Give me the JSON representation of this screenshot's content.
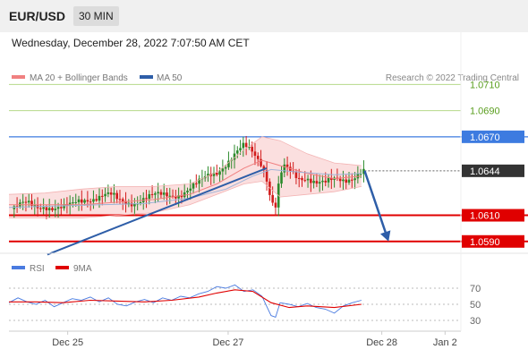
{
  "header": {
    "symbol": "EUR/USD",
    "interval": "30 MIN"
  },
  "datetime": "Wednesday, December 28, 2022 7:07:50 AM CET",
  "legend": {
    "ma20": "MA 20 + Bollinger Bands",
    "ma50": "MA 50",
    "rsi": "RSI",
    "ma9": "9MA",
    "copyright": "Research © 2022 Trading Central"
  },
  "colors": {
    "up": "#2b8a2b",
    "down": "#d21c1c",
    "ma20": "#f08080",
    "bb_fill": "#fbdcdc",
    "ma50": "#2e5ea8",
    "support": "#e00000",
    "resistance": "#b6d98a",
    "pivot": "#3d7be0",
    "current": "#333333",
    "rsi": "#4a7be0",
    "rsi_ma": "#e00000"
  },
  "chart_data": [
    {
      "type": "candlestick",
      "title": "EUR/USD 30 MIN",
      "x_tick_labels": [
        "Dec 25",
        "Dec 27",
        "Dec 28",
        "Jan 2"
      ],
      "ylim": [
        1.0583,
        1.0713
      ],
      "levels": [
        {
          "label": "1.0710",
          "value": 1.071,
          "kind": "resistance"
        },
        {
          "label": "1.0690",
          "value": 1.069,
          "kind": "resistance"
        },
        {
          "label": "1.0670",
          "value": 1.067,
          "kind": "pivot"
        },
        {
          "label": "1.0644",
          "value": 1.0644,
          "kind": "current"
        },
        {
          "label": "1.0610",
          "value": 1.061,
          "kind": "support"
        },
        {
          "label": "1.0590",
          "value": 1.059,
          "kind": "support"
        }
      ],
      "trendline": [
        [
          0.085,
          1.058
        ],
        [
          0.57,
          1.0646
        ]
      ],
      "forecast_arrow": [
        [
          0.787,
          1.0644
        ],
        [
          0.84,
          1.059
        ]
      ],
      "price_path": [
        [
          0.0,
          1.0614
        ],
        [
          0.02,
          1.0617
        ],
        [
          0.04,
          1.0618
        ],
        [
          0.06,
          1.0616
        ],
        [
          0.08,
          1.0618
        ],
        [
          0.1,
          1.0616
        ],
        [
          0.12,
          1.0615
        ],
        [
          0.14,
          1.0617
        ],
        [
          0.15,
          1.062
        ],
        [
          0.17,
          1.0623
        ],
        [
          0.19,
          1.0624
        ],
        [
          0.21,
          1.0625
        ],
        [
          0.23,
          1.0624
        ],
        [
          0.24,
          1.0621
        ],
        [
          0.26,
          1.062
        ],
        [
          0.28,
          1.0621
        ],
        [
          0.3,
          1.0623
        ],
        [
          0.32,
          1.0624
        ],
        [
          0.34,
          1.0625
        ],
        [
          0.36,
          1.0626
        ],
        [
          0.38,
          1.0627
        ],
        [
          0.4,
          1.063
        ],
        [
          0.42,
          1.0634
        ],
        [
          0.44,
          1.064
        ],
        [
          0.46,
          1.0644
        ],
        [
          0.48,
          1.065
        ],
        [
          0.5,
          1.0656
        ],
        [
          0.52,
          1.0662
        ],
        [
          0.54,
          1.0658
        ],
        [
          0.56,
          1.065
        ],
        [
          0.57,
          1.064
        ],
        [
          0.58,
          1.0622
        ],
        [
          0.59,
          1.0617
        ],
        [
          0.6,
          1.064
        ],
        [
          0.61,
          1.0646
        ],
        [
          0.62,
          1.0643
        ],
        [
          0.64,
          1.0638
        ],
        [
          0.66,
          1.064
        ],
        [
          0.68,
          1.0636
        ],
        [
          0.7,
          1.0634
        ],
        [
          0.72,
          1.0636
        ],
        [
          0.74,
          1.0637
        ],
        [
          0.76,
          1.064
        ],
        [
          0.78,
          1.0644
        ]
      ],
      "ma20": [
        [
          0.0,
          1.0618
        ],
        [
          0.08,
          1.0618
        ],
        [
          0.16,
          1.0618
        ],
        [
          0.24,
          1.062
        ],
        [
          0.32,
          1.0622
        ],
        [
          0.4,
          1.0626
        ],
        [
          0.46,
          1.0634
        ],
        [
          0.52,
          1.0646
        ],
        [
          0.56,
          1.0652
        ],
        [
          0.6,
          1.0648
        ],
        [
          0.66,
          1.0642
        ],
        [
          0.72,
          1.0638
        ],
        [
          0.78,
          1.064
        ]
      ],
      "ma50": [
        [
          0.0,
          1.0616
        ],
        [
          0.1,
          1.0617
        ],
        [
          0.2,
          1.0618
        ],
        [
          0.3,
          1.0619
        ],
        [
          0.4,
          1.0623
        ],
        [
          0.48,
          1.063
        ],
        [
          0.54,
          1.064
        ],
        [
          0.58,
          1.0645
        ],
        [
          0.64,
          1.0643
        ],
        [
          0.72,
          1.0641
        ],
        [
          0.78,
          1.0642
        ]
      ],
      "bb_upper": [
        [
          0.0,
          1.0626
        ],
        [
          0.08,
          1.0627
        ],
        [
          0.16,
          1.063
        ],
        [
          0.24,
          1.0632
        ],
        [
          0.32,
          1.0632
        ],
        [
          0.4,
          1.0634
        ],
        [
          0.46,
          1.0643
        ],
        [
          0.52,
          1.066
        ],
        [
          0.56,
          1.067
        ],
        [
          0.6,
          1.0667
        ],
        [
          0.66,
          1.0657
        ],
        [
          0.72,
          1.065
        ],
        [
          0.78,
          1.0648
        ]
      ],
      "bb_lower": [
        [
          0.0,
          1.0608
        ],
        [
          0.08,
          1.0608
        ],
        [
          0.16,
          1.0608
        ],
        [
          0.24,
          1.061
        ],
        [
          0.32,
          1.0612
        ],
        [
          0.4,
          1.0618
        ],
        [
          0.46,
          1.0626
        ],
        [
          0.52,
          1.0634
        ],
        [
          0.56,
          1.0636
        ],
        [
          0.6,
          1.0624
        ],
        [
          0.66,
          1.0626
        ],
        [
          0.72,
          1.0628
        ],
        [
          0.78,
          1.0632
        ]
      ]
    },
    {
      "type": "line",
      "title": "RSI",
      "ylim": [
        20,
        80
      ],
      "y_tick_labels": [
        "70",
        "50",
        "30"
      ],
      "series": [
        {
          "name": "RSI",
          "values": [
            [
              0.0,
              52
            ],
            [
              0.02,
              58
            ],
            [
              0.04,
              53
            ],
            [
              0.06,
              50
            ],
            [
              0.08,
              55
            ],
            [
              0.1,
              47
            ],
            [
              0.12,
              52
            ],
            [
              0.14,
              57
            ],
            [
              0.16,
              55
            ],
            [
              0.18,
              59
            ],
            [
              0.2,
              53
            ],
            [
              0.22,
              58
            ],
            [
              0.24,
              50
            ],
            [
              0.26,
              48
            ],
            [
              0.28,
              53
            ],
            [
              0.3,
              56
            ],
            [
              0.32,
              52
            ],
            [
              0.34,
              58
            ],
            [
              0.36,
              55
            ],
            [
              0.38,
              60
            ],
            [
              0.4,
              58
            ],
            [
              0.42,
              63
            ],
            [
              0.44,
              66
            ],
            [
              0.46,
              72
            ],
            [
              0.48,
              70
            ],
            [
              0.5,
              74
            ],
            [
              0.52,
              66
            ],
            [
              0.54,
              68
            ],
            [
              0.56,
              60
            ],
            [
              0.57,
              48
            ],
            [
              0.58,
              36
            ],
            [
              0.59,
              34
            ],
            [
              0.6,
              52
            ],
            [
              0.62,
              50
            ],
            [
              0.64,
              47
            ],
            [
              0.66,
              51
            ],
            [
              0.68,
              46
            ],
            [
              0.7,
              44
            ],
            [
              0.72,
              39
            ],
            [
              0.74,
              48
            ],
            [
              0.76,
              52
            ],
            [
              0.78,
              55
            ]
          ]
        },
        {
          "name": "9MA",
          "values": [
            [
              0.0,
              53
            ],
            [
              0.06,
              53
            ],
            [
              0.12,
              52
            ],
            [
              0.18,
              55
            ],
            [
              0.24,
              54
            ],
            [
              0.3,
              53
            ],
            [
              0.36,
              55
            ],
            [
              0.42,
              59
            ],
            [
              0.46,
              64
            ],
            [
              0.5,
              68
            ],
            [
              0.54,
              66
            ],
            [
              0.58,
              52
            ],
            [
              0.62,
              46
            ],
            [
              0.66,
              48
            ],
            [
              0.72,
              46
            ],
            [
              0.78,
              50
            ]
          ]
        }
      ]
    }
  ]
}
